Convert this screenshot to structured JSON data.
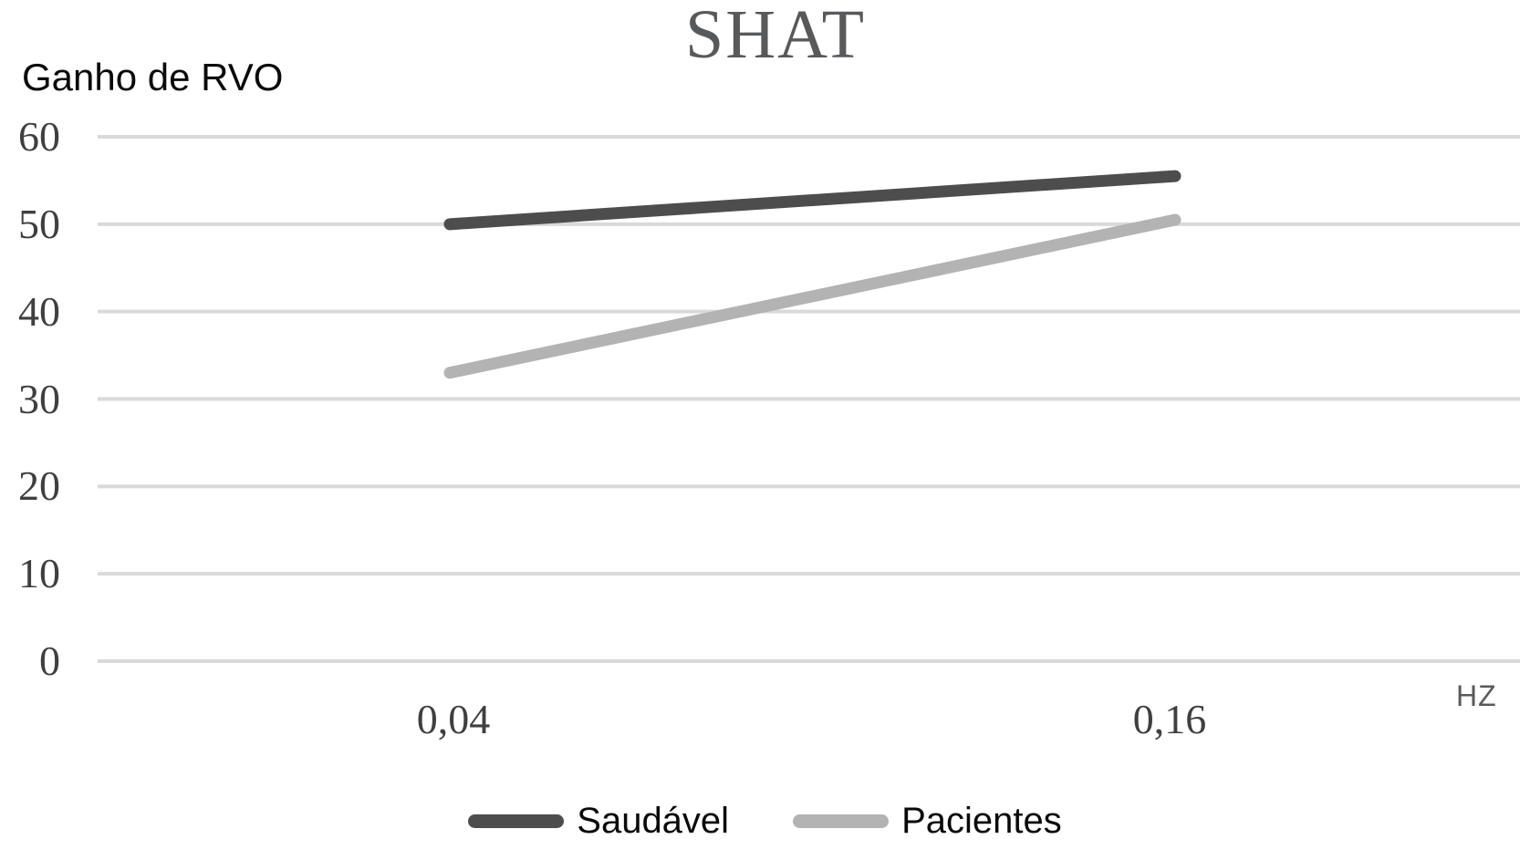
{
  "chart_data": {
    "type": "line",
    "title": "SHAT",
    "ylabel": "Ganho de RVO",
    "xlabel": "HZ",
    "x": [
      0.04,
      0.16
    ],
    "x_tick_labels": [
      "0,04",
      "0,16"
    ],
    "yticks": [
      0,
      10,
      20,
      30,
      40,
      50,
      60
    ],
    "y_tick_labels": [
      "0",
      "10",
      "20",
      "30",
      "40",
      "50",
      "60"
    ],
    "ylim": [
      0,
      60
    ],
    "grid": "horizontal",
    "gridline_color": "#d9d9d9",
    "legend_position": "bottom",
    "series": [
      {
        "name": "Saudável",
        "values": [
          50,
          55.5
        ],
        "color": "#4d4d4d"
      },
      {
        "name": "Pacientes",
        "values": [
          33,
          50.5
        ],
        "color": "#b3b3b3"
      }
    ]
  },
  "colors": {
    "title": "#58595b",
    "tick_labels": "#3f3f3f",
    "x_unit": "#595959",
    "background": "#ffffff"
  }
}
